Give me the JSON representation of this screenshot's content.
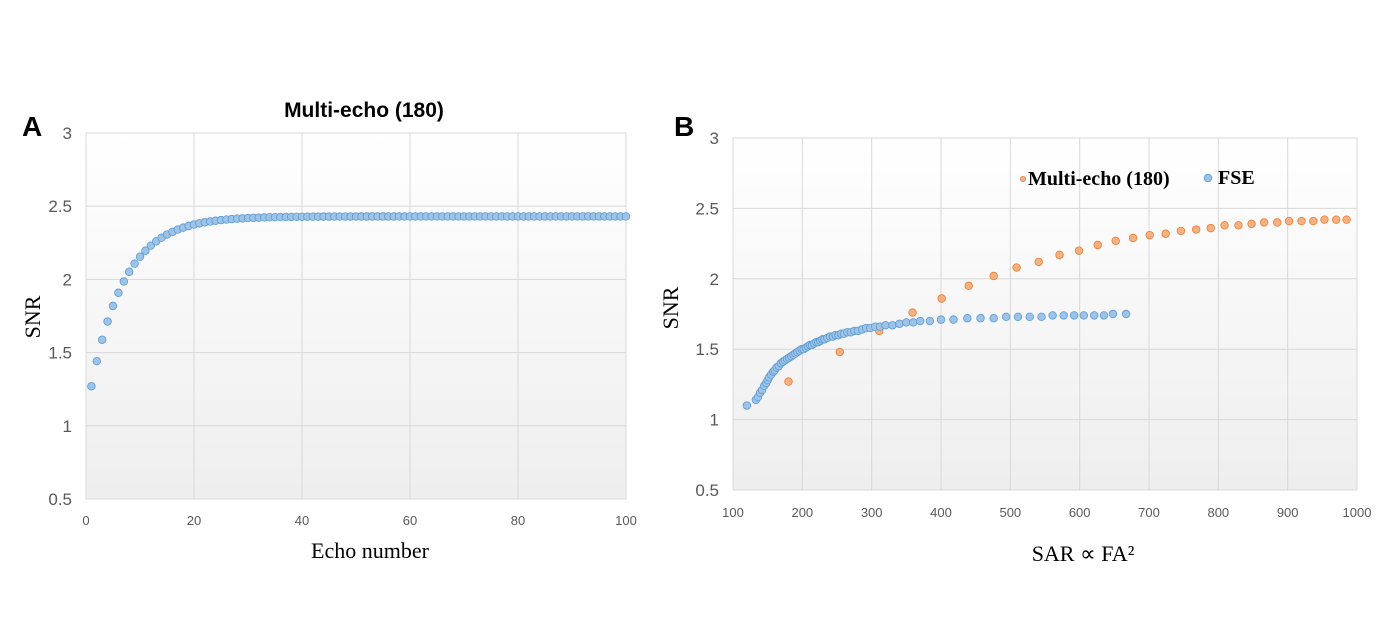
{
  "chart_data": [
    {
      "panel": "A",
      "type": "scatter",
      "title": "Multi-echo (180)",
      "xlabel": "Echo number",
      "ylabel": "SNR",
      "xlim": [
        0,
        100
      ],
      "ylim": [
        0.5,
        3
      ],
      "xticks": [
        0,
        20,
        40,
        60,
        80,
        100
      ],
      "yticks": [
        0.5,
        1,
        1.5,
        2,
        2.5,
        3
      ],
      "grid": true,
      "series": [
        {
          "name": "Multi-echo (180)",
          "color": "#9dc3e6",
          "edge": "#5b9bd5",
          "model": "exponential-saturation",
          "x_range": [
            1,
            100
          ],
          "count": 100,
          "plateau": 2.43,
          "start": 1.27,
          "rate": 0.16
        }
      ]
    },
    {
      "panel": "B",
      "type": "scatter",
      "title": "",
      "xlabel": "SAR ∝ FA²",
      "ylabel": "SNR",
      "xlim": [
        100,
        1000
      ],
      "ylim": [
        0.5,
        3
      ],
      "xticks": [
        100,
        200,
        300,
        400,
        500,
        600,
        700,
        800,
        900,
        1000
      ],
      "yticks": [
        0.5,
        1,
        1.5,
        2,
        2.5,
        3
      ],
      "grid": true,
      "legend_position": "top-right",
      "series": [
        {
          "name": "Multi-echo (180)",
          "color": "#f4b183",
          "edge": "#ed7d31",
          "x": [
            180,
            254,
            311,
            359,
            401,
            440,
            476,
            509,
            541,
            571,
            599,
            626,
            652,
            677,
            701,
            724,
            746,
            768,
            789,
            809,
            829,
            848,
            866,
            885,
            902,
            920,
            937,
            953,
            970,
            985
          ],
          "y": [
            1.27,
            1.48,
            1.63,
            1.76,
            1.86,
            1.95,
            2.02,
            2.08,
            2.12,
            2.17,
            2.2,
            2.24,
            2.27,
            2.29,
            2.31,
            2.32,
            2.34,
            2.35,
            2.36,
            2.38,
            2.38,
            2.39,
            2.4,
            2.4,
            2.41,
            2.41,
            2.41,
            2.42,
            2.42,
            2.42
          ]
        },
        {
          "name": "FSE",
          "color": "#9dc3e6",
          "edge": "#5b9bd5",
          "x": [
            120,
            133,
            136,
            139,
            142,
            145,
            148,
            150,
            152,
            155,
            158,
            160,
            163,
            166,
            169,
            172,
            175,
            178,
            181,
            184,
            187,
            190,
            193,
            196,
            199,
            202,
            205,
            208,
            211,
            214,
            217,
            220,
            223,
            226,
            229,
            232,
            236,
            240,
            244,
            248,
            252,
            256,
            260,
            265,
            270,
            275,
            280,
            286,
            292,
            298,
            305,
            312,
            320,
            330,
            340,
            350,
            360,
            370,
            384,
            400,
            418,
            438,
            457,
            476,
            494,
            511,
            528,
            545,
            561,
            577,
            592,
            606,
            621,
            635,
            648,
            667
          ],
          "y": [
            1.1,
            1.14,
            1.16,
            1.19,
            1.21,
            1.24,
            1.26,
            1.28,
            1.3,
            1.32,
            1.34,
            1.35,
            1.37,
            1.38,
            1.4,
            1.41,
            1.42,
            1.43,
            1.44,
            1.45,
            1.46,
            1.47,
            1.48,
            1.49,
            1.5,
            1.5,
            1.51,
            1.52,
            1.53,
            1.53,
            1.54,
            1.55,
            1.55,
            1.56,
            1.57,
            1.57,
            1.58,
            1.59,
            1.59,
            1.6,
            1.6,
            1.61,
            1.61,
            1.62,
            1.62,
            1.63,
            1.63,
            1.64,
            1.65,
            1.65,
            1.66,
            1.66,
            1.67,
            1.67,
            1.68,
            1.69,
            1.69,
            1.7,
            1.7,
            1.71,
            1.71,
            1.72,
            1.72,
            1.72,
            1.73,
            1.73,
            1.73,
            1.73,
            1.74,
            1.74,
            1.74,
            1.74,
            1.74,
            1.74,
            1.75,
            1.75
          ]
        }
      ]
    }
  ]
}
